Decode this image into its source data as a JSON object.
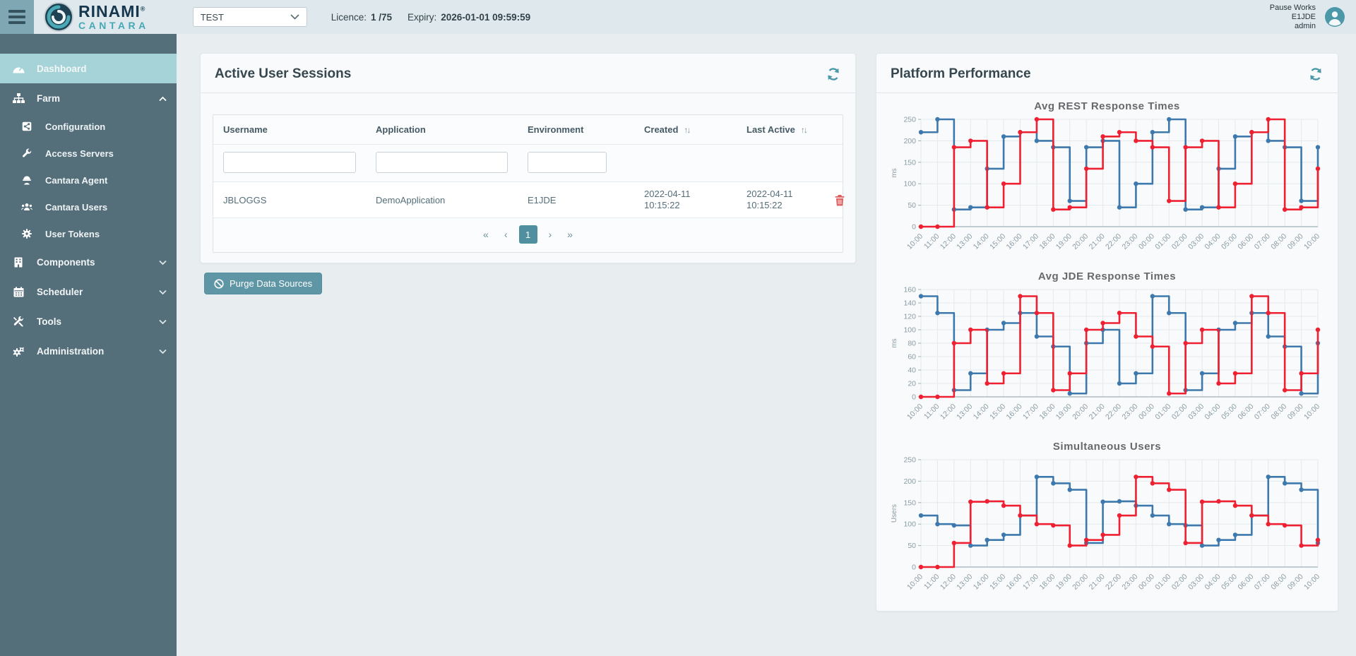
{
  "topbar": {
    "brand": {
      "line1": "RINAMI",
      "reg": "®",
      "line2": "CANTARA"
    },
    "env_select": {
      "value": "TEST"
    },
    "licence_label": "Licence:",
    "licence_value": "1 /75",
    "expiry_label": "Expiry:",
    "expiry_value": "2026-01-01 09:59:59",
    "user": {
      "line1": "Pause Works",
      "line2": "E1JDE",
      "line3": "admin"
    }
  },
  "sidebar": {
    "items": [
      {
        "label": "Dashboard"
      },
      {
        "label": "Farm"
      },
      {
        "label": "Configuration"
      },
      {
        "label": "Access Servers"
      },
      {
        "label": "Cantara Agent"
      },
      {
        "label": "Cantara Users"
      },
      {
        "label": "User Tokens"
      },
      {
        "label": "Components"
      },
      {
        "label": "Scheduler"
      },
      {
        "label": "Tools"
      },
      {
        "label": "Administration"
      }
    ]
  },
  "sessions": {
    "title": "Active User Sessions",
    "columns": [
      "Username",
      "Application",
      "Environment",
      "Created",
      "Last Active"
    ],
    "rows": [
      {
        "username": "JBLOGGS",
        "application": "DemoApplication",
        "environment": "E1JDE",
        "created": "2022-04-11 10:15:22",
        "last_active": "2022-04-11 10:15:22"
      }
    ],
    "pagination": {
      "current": "1"
    },
    "purge_label": "Purge Data Sources"
  },
  "performance": {
    "title": "Platform Performance"
  },
  "icons": {
    "first": "«",
    "prev": "‹",
    "next": "›",
    "last": "»",
    "sort": "↑↓"
  },
  "colors": {
    "accent": "#4a98a8",
    "series_blue": "#3e79ad",
    "series_red": "#ee2031",
    "sidebar": "#546e7a",
    "sidebar_active": "#a5d3d7"
  },
  "chart_data": [
    {
      "type": "line",
      "subtype": "step-after",
      "title": "Avg REST Response Times",
      "xlabel": "",
      "ylabel": "ms",
      "ylim": [
        0,
        250
      ],
      "ytick": 50,
      "grid": true,
      "legend": "none",
      "markers": true,
      "categories": [
        "10:00",
        "11:00",
        "12:00",
        "13:00",
        "14:00",
        "15:00",
        "16:00",
        "17:00",
        "18:00",
        "19:00",
        "20:00",
        "21:00",
        "22:00",
        "23:00",
        "00:00",
        "01:00",
        "02:00",
        "03:00",
        "04:00",
        "05:00",
        "06:00",
        "07:00",
        "08:00",
        "09:00",
        "10:00"
      ],
      "series": [
        {
          "name": "blue",
          "color": "#3e79ad",
          "values": [
            220,
            250,
            40,
            45,
            135,
            210,
            220,
            200,
            185,
            60,
            185,
            200,
            45,
            100,
            220,
            250,
            40,
            45,
            135,
            210,
            220,
            200,
            185,
            60,
            185
          ]
        },
        {
          "name": "red",
          "color": "#ee2031",
          "values": [
            0,
            0,
            185,
            200,
            45,
            100,
            220,
            250,
            40,
            45,
            135,
            210,
            220,
            200,
            185,
            60,
            185,
            200,
            45,
            100,
            220,
            250,
            40,
            45,
            135
          ]
        }
      ]
    },
    {
      "type": "line",
      "subtype": "step-after",
      "title": "Avg JDE Response Times",
      "xlabel": "",
      "ylabel": "ms",
      "ylim": [
        0,
        160
      ],
      "ytick": 20,
      "grid": true,
      "legend": "none",
      "markers": true,
      "categories": [
        "10:00",
        "11:00",
        "12:00",
        "13:00",
        "14:00",
        "15:00",
        "16:00",
        "17:00",
        "18:00",
        "19:00",
        "20:00",
        "21:00",
        "22:00",
        "23:00",
        "00:00",
        "01:00",
        "02:00",
        "03:00",
        "04:00",
        "05:00",
        "06:00",
        "07:00",
        "08:00",
        "09:00",
        "10:00"
      ],
      "series": [
        {
          "name": "blue",
          "color": "#3e79ad",
          "values": [
            150,
            125,
            10,
            35,
            100,
            110,
            125,
            90,
            75,
            5,
            80,
            100,
            20,
            35,
            150,
            125,
            10,
            35,
            100,
            110,
            125,
            90,
            75,
            5,
            80
          ]
        },
        {
          "name": "red",
          "color": "#ee2031",
          "values": [
            0,
            0,
            80,
            100,
            20,
            35,
            150,
            125,
            10,
            35,
            100,
            110,
            125,
            90,
            75,
            5,
            80,
            100,
            20,
            35,
            150,
            125,
            10,
            35,
            100
          ]
        }
      ]
    },
    {
      "type": "line",
      "subtype": "step-after",
      "title": "Simultaneous Users",
      "xlabel": "",
      "ylabel": "Users",
      "ylim": [
        0,
        250
      ],
      "ytick": 50,
      "grid": true,
      "legend": "none",
      "markers": true,
      "categories": [
        "10:00",
        "11:00",
        "12:00",
        "13:00",
        "14:00",
        "15:00",
        "16:00",
        "17:00",
        "18:00",
        "19:00",
        "20:00",
        "21:00",
        "22:00",
        "23:00",
        "00:00",
        "01:00",
        "02:00",
        "03:00",
        "04:00",
        "05:00",
        "06:00",
        "07:00",
        "08:00",
        "09:00",
        "10:00"
      ],
      "series": [
        {
          "name": "blue",
          "color": "#3e79ad",
          "values": [
            120,
            100,
            97,
            50,
            63,
            75,
            120,
            210,
            195,
            180,
            56,
            152,
            153,
            143,
            120,
            100,
            97,
            50,
            63,
            75,
            120,
            210,
            195,
            180,
            56
          ]
        },
        {
          "name": "red",
          "color": "#ee2031",
          "values": [
            0,
            0,
            56,
            152,
            153,
            143,
            120,
            100,
            97,
            50,
            63,
            75,
            120,
            210,
            195,
            180,
            56,
            152,
            153,
            143,
            120,
            100,
            97,
            50,
            63
          ]
        }
      ]
    }
  ]
}
